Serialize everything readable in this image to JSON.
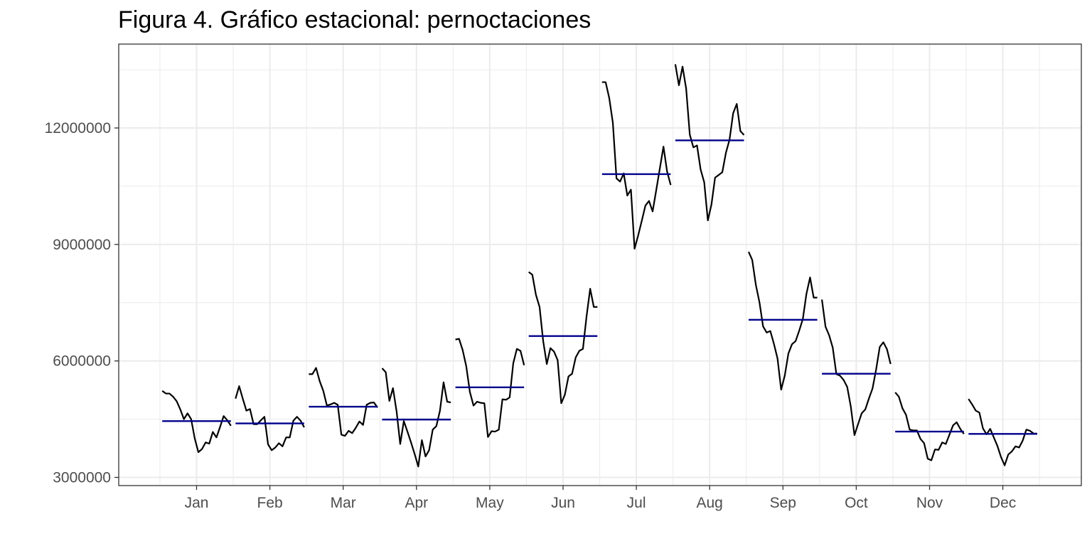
{
  "chart_data": {
    "type": "line",
    "title": "Figura 4. Gráfico estacional: pernoctaciones",
    "xlabel": "",
    "ylabel": "",
    "ylim": [
      2800000,
      13800000
    ],
    "yticks": [
      3000000,
      6000000,
      9000000,
      12000000
    ],
    "ytick_labels": [
      "3000000",
      "6000000",
      "9000000",
      "12000000"
    ],
    "grid": true,
    "colors": {
      "series": "#000000",
      "mean": "#00008B",
      "grid": "#ebebeb",
      "panel_border": "#333333"
    },
    "months": [
      {
        "label": "Jan",
        "mean": 4450000,
        "values": [
          5230000,
          5160000,
          5160000,
          5080000,
          4960000,
          4750000,
          4500000,
          4650000,
          4500000,
          4000000,
          3650000,
          3730000,
          3900000,
          3870000,
          4170000,
          4030000,
          4300000,
          4580000,
          4470000,
          4330000
        ]
      },
      {
        "label": "Feb",
        "mean": 4390000,
        "values": [
          5030000,
          5350000,
          5030000,
          4720000,
          4760000,
          4370000,
          4370000,
          4470000,
          4560000,
          3850000,
          3700000,
          3770000,
          3880000,
          3800000,
          4030000,
          4030000,
          4460000,
          4560000,
          4460000,
          4290000
        ]
      },
      {
        "label": "Mar",
        "mean": 4820000,
        "values": [
          5660000,
          5660000,
          5820000,
          5480000,
          5230000,
          4850000,
          4880000,
          4920000,
          4870000,
          4100000,
          4070000,
          4200000,
          4140000,
          4280000,
          4440000,
          4350000,
          4870000,
          4920000,
          4930000,
          4800000
        ]
      },
      {
        "label": "Apr",
        "mean": 4490000,
        "values": [
          5810000,
          5710000,
          4970000,
          5300000,
          4700000,
          3860000,
          4450000,
          4180000,
          3900000,
          3600000,
          3280000,
          3960000,
          3540000,
          3700000,
          4230000,
          4320000,
          4720000,
          5450000,
          4950000,
          4930000
        ]
      },
      {
        "label": "May",
        "mean": 5320000,
        "values": [
          6550000,
          6570000,
          6280000,
          5860000,
          5200000,
          4850000,
          4950000,
          4920000,
          4910000,
          4040000,
          4190000,
          4180000,
          4230000,
          5010000,
          5000000,
          5060000,
          5940000,
          6310000,
          6260000,
          5890000
        ]
      },
      {
        "label": "Jun",
        "mean": 6640000,
        "values": [
          8290000,
          8220000,
          7700000,
          7390000,
          6510000,
          5920000,
          6330000,
          6240000,
          6020000,
          4910000,
          5130000,
          5600000,
          5670000,
          6090000,
          6260000,
          6310000,
          7150000,
          7860000,
          7390000,
          7390000
        ]
      },
      {
        "label": "Jul",
        "mean": 10810000,
        "values": [
          13180000,
          13180000,
          12770000,
          12130000,
          10700000,
          10620000,
          10830000,
          10260000,
          10410000,
          8890000,
          9230000,
          9610000,
          10000000,
          10120000,
          9850000,
          10400000,
          10960000,
          11520000,
          10880000,
          10530000
        ]
      },
      {
        "label": "Aug",
        "mean": 11680000,
        "values": [
          13640000,
          13100000,
          13580000,
          13010000,
          11830000,
          11500000,
          11550000,
          10930000,
          10600000,
          9620000,
          10030000,
          10720000,
          10790000,
          10860000,
          11360000,
          11700000,
          12380000,
          12620000,
          11920000,
          11820000
        ]
      },
      {
        "label": "Sep",
        "mean": 7060000,
        "values": [
          8810000,
          8600000,
          7960000,
          7510000,
          6890000,
          6730000,
          6770000,
          6440000,
          6060000,
          5260000,
          5620000,
          6190000,
          6430000,
          6510000,
          6780000,
          7080000,
          7730000,
          8150000,
          7630000,
          7630000
        ]
      },
      {
        "label": "Oct",
        "mean": 5670000,
        "values": [
          7580000,
          6880000,
          6660000,
          6340000,
          5660000,
          5620000,
          5510000,
          5330000,
          4820000,
          4090000,
          4370000,
          4650000,
          4750000,
          5030000,
          5290000,
          5780000,
          6360000,
          6480000,
          6300000,
          5920000
        ]
      },
      {
        "label": "Nov",
        "mean": 4180000,
        "values": [
          5190000,
          5080000,
          4780000,
          4610000,
          4230000,
          4210000,
          4210000,
          3990000,
          3880000,
          3480000,
          3440000,
          3720000,
          3710000,
          3900000,
          3860000,
          4100000,
          4340000,
          4420000,
          4250000,
          4120000
        ]
      },
      {
        "label": "Dec",
        "mean": 4120000,
        "values": [
          5020000,
          4880000,
          4720000,
          4670000,
          4260000,
          4110000,
          4250000,
          4030000,
          3810000,
          3520000,
          3310000,
          3590000,
          3670000,
          3800000,
          3770000,
          3950000,
          4230000,
          4200000,
          4130000,
          4130000
        ]
      }
    ]
  }
}
